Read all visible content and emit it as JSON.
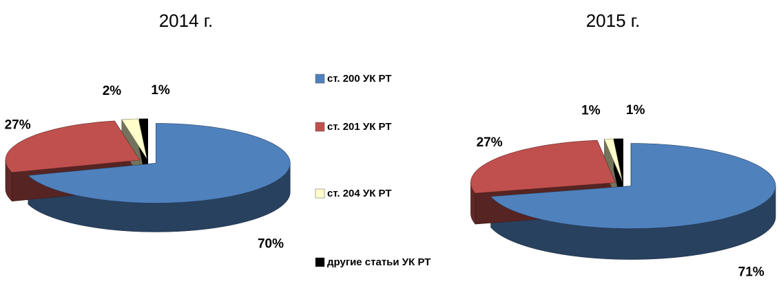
{
  "chart_data": [
    {
      "type": "pie",
      "title": "2014 г.",
      "values": [
        70,
        27,
        2,
        1
      ],
      "value_labels": [
        "70%",
        "27%",
        "2%",
        "1%"
      ]
    },
    {
      "type": "pie",
      "title": "2015 г.",
      "values": [
        71,
        27,
        1,
        1
      ],
      "value_labels": [
        "71%",
        "27%",
        "1%",
        "1%"
      ]
    }
  ],
  "legend": {
    "entries": [
      {
        "name": "ст. 200 УК РТ",
        "color": "#4f81bd"
      },
      {
        "name": "ст. 201 УК РТ",
        "color": "#c0504d"
      },
      {
        "name": "ст. 204 УК РТ",
        "color": "#ffffcc"
      },
      {
        "name": "другие статьи УК РТ",
        "color": "#000000"
      }
    ]
  }
}
